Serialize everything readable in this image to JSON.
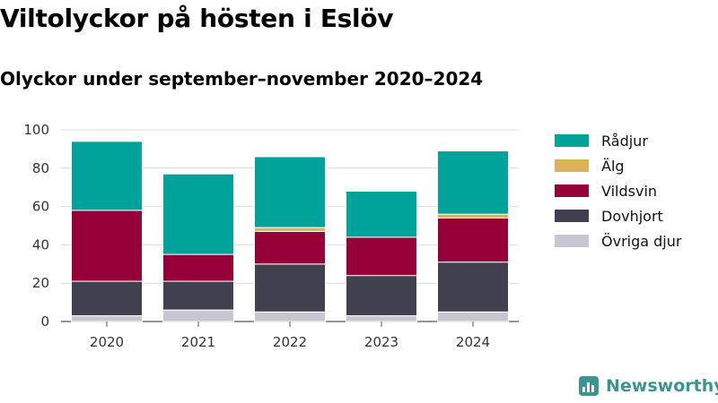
{
  "chart_data": {
    "type": "bar",
    "stacked": true,
    "title": "Viltolyckor på hösten i Eslöv",
    "subtitle": "Olyckor under september–november 2020–2024",
    "xlabel": "",
    "ylabel": "",
    "categories": [
      "2020",
      "2021",
      "2022",
      "2023",
      "2024"
    ],
    "ylim": [
      0,
      100
    ],
    "yticks": [
      0,
      20,
      40,
      60,
      80,
      100
    ],
    "grid": true,
    "legend_position": "right",
    "series": [
      {
        "name": "Övriga djur",
        "color": "#c8c6d3",
        "values": [
          3,
          6,
          5,
          3,
          5
        ]
      },
      {
        "name": "Dovhjort",
        "color": "#41404e",
        "values": [
          18,
          15,
          25,
          21,
          26
        ]
      },
      {
        "name": "Vildsvin",
        "color": "#960039",
        "values": [
          37,
          14,
          17,
          20,
          23
        ]
      },
      {
        "name": "Älg",
        "color": "#ddb05e",
        "values": [
          0,
          0,
          2,
          0,
          2
        ]
      },
      {
        "name": "Rådjur",
        "color": "#00a39a",
        "values": [
          36,
          42,
          37,
          24,
          33
        ]
      }
    ],
    "legend_order": [
      "Rådjur",
      "Älg",
      "Vildsvin",
      "Dovhjort",
      "Övriga djur"
    ]
  },
  "brand": {
    "name": "Newsworthy",
    "icon": "bar-chart-icon",
    "color": "#3b958e"
  }
}
